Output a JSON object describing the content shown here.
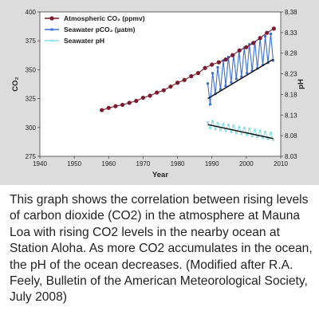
{
  "chart_data": {
    "type": "line",
    "xlabel": "Year",
    "ylabel_left": "CO₂",
    "ylabel_right": "pH",
    "xlim": [
      1940,
      2010
    ],
    "ylim_left": [
      275,
      400
    ],
    "ylim_right": [
      8.03,
      8.38
    ],
    "x_ticks": [
      "1940",
      "1950",
      "1960",
      "1970",
      "1980",
      "1990",
      "2000",
      "2010"
    ],
    "y_left_ticks": [
      "275",
      "300",
      "325",
      "350",
      "375",
      "400"
    ],
    "y_right_ticks": [
      "8.03",
      "8.08",
      "8.13",
      "8.18",
      "8.23",
      "8.28",
      "8.33",
      "8.38"
    ],
    "legend_position": "top-left",
    "series": [
      {
        "name": "Atmospheric CO₂ (ppmv)",
        "axis": "left",
        "color": "#7a1b2e",
        "x": [
          1958,
          1960,
          1962,
          1964,
          1966,
          1968,
          1970,
          1972,
          1974,
          1976,
          1978,
          1980,
          1982,
          1984,
          1986,
          1988,
          1990,
          1992,
          1994,
          1996,
          1998,
          2000,
          2002,
          2004,
          2006,
          2008
        ],
        "y": [
          315.0,
          316.9,
          318.4,
          319.6,
          321.3,
          323.0,
          325.7,
          327.5,
          330.2,
          332.2,
          335.4,
          338.7,
          341.1,
          344.4,
          347.1,
          351.5,
          354.4,
          356.4,
          358.8,
          362.6,
          366.7,
          369.5,
          373.1,
          377.4,
          381.9,
          385.6
        ],
        "trend": null
      },
      {
        "name": "Seawater pCO₂ (µatm)",
        "axis": "left",
        "color": "#3b6fd6",
        "x": [
          1988.8,
          1989.5,
          1990.2,
          1991.0,
          1991.7,
          1992.5,
          1993.3,
          1994.0,
          1994.8,
          1995.6,
          1996.3,
          1997.1,
          1997.9,
          1998.6,
          1999.4,
          2000.2,
          2000.9,
          2001.7,
          2002.5,
          2003.2,
          2004.0,
          2004.8,
          2005.5,
          2006.3,
          2007.1,
          2007.8
        ],
        "y": [
          338,
          320,
          347,
          329,
          352,
          333,
          358,
          336,
          361,
          339,
          363,
          342,
          366,
          344,
          369,
          347,
          372,
          349,
          374,
          351,
          377,
          354,
          379,
          356,
          381,
          358
        ],
        "trend": {
          "x": [
            1988.8,
            2007.8
          ],
          "y": [
            325,
            359
          ]
        }
      },
      {
        "name": "Seawater pH",
        "axis": "right",
        "color": "#8fe0e8",
        "x": [
          1988.8,
          1989.5,
          1990.2,
          1991.0,
          1991.7,
          1992.5,
          1993.3,
          1994.0,
          1994.8,
          1995.6,
          1996.3,
          1997.1,
          1997.9,
          1998.6,
          1999.4,
          2000.2,
          2000.9,
          2001.7,
          2002.5,
          2003.2,
          2004.0,
          2004.8,
          2005.5,
          2006.3,
          2007.1,
          2007.8
        ],
        "y": [
          8.112,
          8.098,
          8.115,
          8.096,
          8.11,
          8.094,
          8.108,
          8.092,
          8.106,
          8.089,
          8.104,
          8.086,
          8.101,
          8.084,
          8.099,
          8.082,
          8.097,
          8.079,
          8.094,
          8.077,
          8.092,
          8.075,
          8.089,
          8.072,
          8.087,
          8.07
        ],
        "trend": {
          "x": [
            1988.8,
            2007.8
          ],
          "y": [
            8.107,
            8.073
          ]
        }
      }
    ],
    "colors": {
      "trend": "#111111",
      "panel_background": "#dcdcdc",
      "plot_background": "#ffffff"
    }
  },
  "caption": "This graph shows the correlation between rising levels of carbon dioxide (CO2) in the atmosphere at Mauna Loa with rising CO2 levels in the nearby ocean at Station Aloha. As more CO2 accumulates in the ocean, the pH of the ocean decreases. (Modified after R.A. Feely, Bulletin of the American Meteorological Society, July 2008)"
}
